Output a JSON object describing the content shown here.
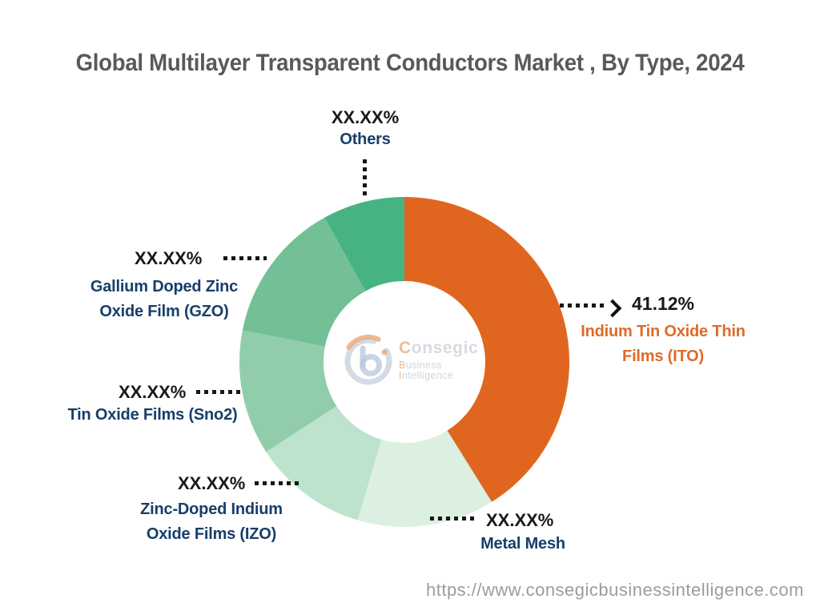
{
  "chart_data": {
    "type": "pie",
    "subtype": "donut",
    "title": "Global Multilayer Transparent Conductors Market , By Type, 2024",
    "legend_position": "callouts-around-donut",
    "start_angle_deg": 0,
    "direction": "clockwise",
    "donut_inner_ratio": 0.49,
    "estimation_note": "Only the ITO share is shown (41.12%); all other slices are masked as XX.XX% in the image, their value_pct is estimated from arc angles for rendering.",
    "segments": [
      {
        "label": "Indium Tin Oxide Thin Films (ITO)",
        "line1": "Indium Tin Oxide Thin",
        "line2": "Films (ITO)",
        "display_value": "41.12%",
        "value_pct": 41.12,
        "color": "#E0661F",
        "label_color": "#DF6A29"
      },
      {
        "label": "Metal Mesh",
        "line1": "Metal Mesh",
        "display_value": "XX.XX%",
        "value_pct": 13.45,
        "color": "#DCF0E2",
        "label_color": "#173E6B"
      },
      {
        "label": "Zinc-Doped Indium Oxide Films (IZO)",
        "line1": "Zinc-Doped Indium",
        "line2": "Oxide Films (IZO)",
        "display_value": "XX.XX%",
        "value_pct": 11.25,
        "color": "#BEE3CC",
        "label_color": "#173E6B"
      },
      {
        "label": "Tin Oxide Films (Sno2)",
        "line1": "Tin Oxide Films (Sno2)",
        "display_value": "XX.XX%",
        "value_pct": 12.25,
        "color": "#92CDAB",
        "label_color": "#173E6B"
      },
      {
        "label": "Gallium Doped Zinc Oxide Film (GZO)",
        "line1": "Gallium Doped Zinc",
        "line2": "Oxide Film (GZO)",
        "display_value": "XX.XX%",
        "value_pct": 13.9,
        "color": "#74C096",
        "label_color": "#173E6B"
      },
      {
        "label": "Others",
        "line1": "Others",
        "display_value": "XX.XX%",
        "value_pct": 8.03,
        "color": "#47B383",
        "label_color": "#173E6B"
      }
    ]
  },
  "logo": {
    "brand_initial": "C",
    "brand_rest": "onsegic",
    "tagline_b": "B",
    "tagline_b_rest": "usiness ",
    "tagline_i": "I",
    "tagline_i_rest": "ntelligence"
  },
  "footer": {
    "url": "https://www.consegicbusinessintelligence.com"
  },
  "colors": {
    "accent_orange": "#E0661F",
    "label_navy": "#173E6B",
    "value_black": "#191919",
    "title_gray": "#58595B",
    "footer_gray": "#9C9C9C"
  }
}
